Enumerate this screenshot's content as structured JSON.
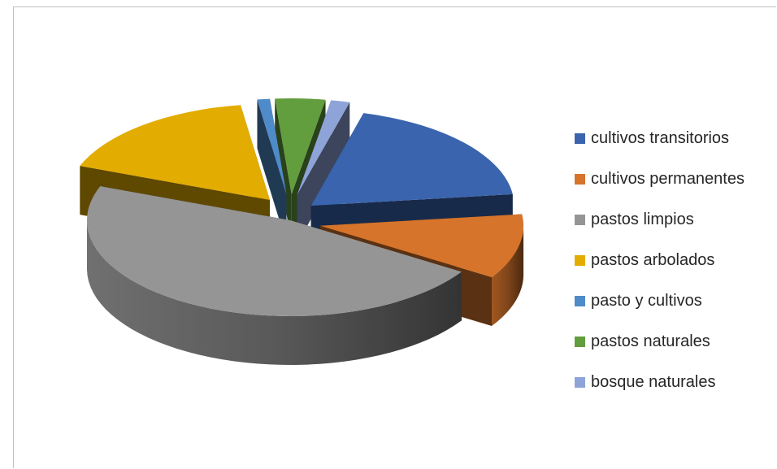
{
  "chart_data": {
    "type": "pie",
    "style": "3d-exploded",
    "title": "",
    "categories": [
      "cultivos transitorios",
      "cultivos permanentes",
      "pastos limpios",
      "pastos arbolados",
      "pasto y cultivos",
      "pastos naturales",
      "bosque naturales"
    ],
    "values": [
      19,
      11,
      47,
      17,
      1,
      4,
      1.5
    ],
    "colors": [
      "#3a64ad",
      "#d6742b",
      "#959595",
      "#e3ac00",
      "#4f8bc8",
      "#629d3e",
      "#8ea4d8"
    ],
    "legend_position": "right"
  }
}
